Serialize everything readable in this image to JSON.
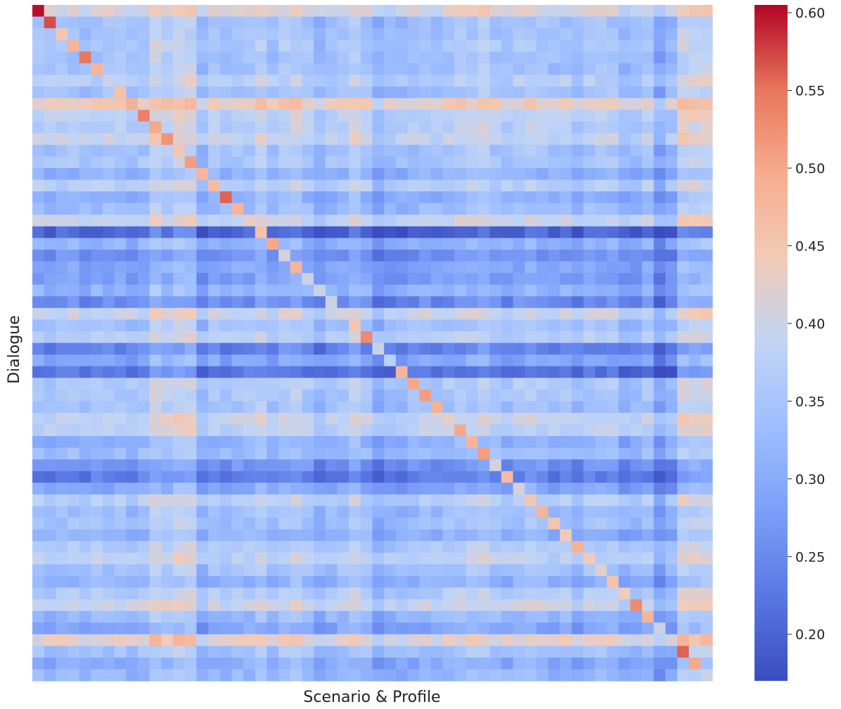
{
  "chart_data": {
    "type": "heatmap",
    "xlabel": "Scenario & Profile",
    "ylabel": "Dialogue",
    "rows": 58,
    "cols": 58,
    "color_scale": "coolwarm",
    "colorbar_range": [
      0.17,
      0.605
    ],
    "colorbar_ticks": [
      "0.20",
      "0.25",
      "0.30",
      "0.35",
      "0.40",
      "0.45",
      "0.50",
      "0.55",
      "0.60"
    ],
    "colorbar_tick_values": [
      0.2,
      0.25,
      0.3,
      0.35,
      0.4,
      0.45,
      0.5,
      0.55,
      0.6
    ],
    "value_model": {
      "diagonal": [
        0.6,
        0.57,
        0.45,
        0.48,
        0.55,
        0.48,
        0.4,
        0.46,
        0.49,
        0.54,
        0.5,
        0.52,
        0.45,
        0.51,
        0.48,
        0.47,
        0.56,
        0.48,
        0.43,
        0.46,
        0.5,
        0.41,
        0.48,
        0.4,
        0.4,
        0.4,
        0.41,
        0.45,
        0.53,
        0.4,
        0.38,
        0.48,
        0.5,
        0.51,
        0.49,
        0.43,
        0.5,
        0.48,
        0.51,
        0.41,
        0.47,
        0.41,
        0.45,
        0.48,
        0.45,
        0.44,
        0.49,
        0.44,
        0.42,
        0.46,
        0.44,
        0.53,
        0.48,
        0.4,
        0.41,
        0.56,
        0.5,
        0.4
      ],
      "row_offset": [
        0.07,
        0.0,
        0.0,
        0.01,
        0.0,
        0.0,
        0.03,
        0.0,
        0.09,
        0.04,
        0.03,
        0.05,
        0.0,
        0.01,
        -0.03,
        0.03,
        -0.03,
        -0.01,
        0.05,
        -0.14,
        -0.03,
        -0.08,
        -0.05,
        -0.06,
        -0.03,
        -0.09,
        0.05,
        0.0,
        0.03,
        -0.1,
        -0.05,
        -0.12,
        0.02,
        0.01,
        0.0,
        0.05,
        0.04,
        -0.03,
        -0.01,
        -0.08,
        -0.11,
        -0.05,
        0.03,
        -0.01,
        0.0,
        -0.03,
        0.02,
        0.04,
        0.0,
        -0.03,
        0.02,
        0.05,
        -0.02,
        -0.05,
        0.08,
        0.0,
        -0.04,
        -0.02
      ],
      "col_offset": [
        0.0,
        -0.01,
        0.0,
        0.0,
        -0.01,
        0.0,
        0.0,
        0.0,
        -0.01,
        0.0,
        0.04,
        0.02,
        0.04,
        0.04,
        -0.03,
        0.0,
        -0.01,
        0.0,
        0.0,
        0.02,
        -0.01,
        0.01,
        0.02,
        0.0,
        -0.03,
        -0.01,
        0.0,
        0.02,
        0.0,
        -0.04,
        -0.02,
        -0.02,
        -0.01,
        0.0,
        -0.01,
        0.0,
        0.01,
        0.01,
        0.02,
        0.0,
        -0.01,
        0.0,
        0.01,
        0.0,
        -0.01,
        0.0,
        -0.02,
        0.0,
        0.0,
        0.0,
        -0.03,
        -0.02,
        0.0,
        -0.06,
        -0.03,
        0.04,
        0.04,
        0.04
      ]
    }
  }
}
